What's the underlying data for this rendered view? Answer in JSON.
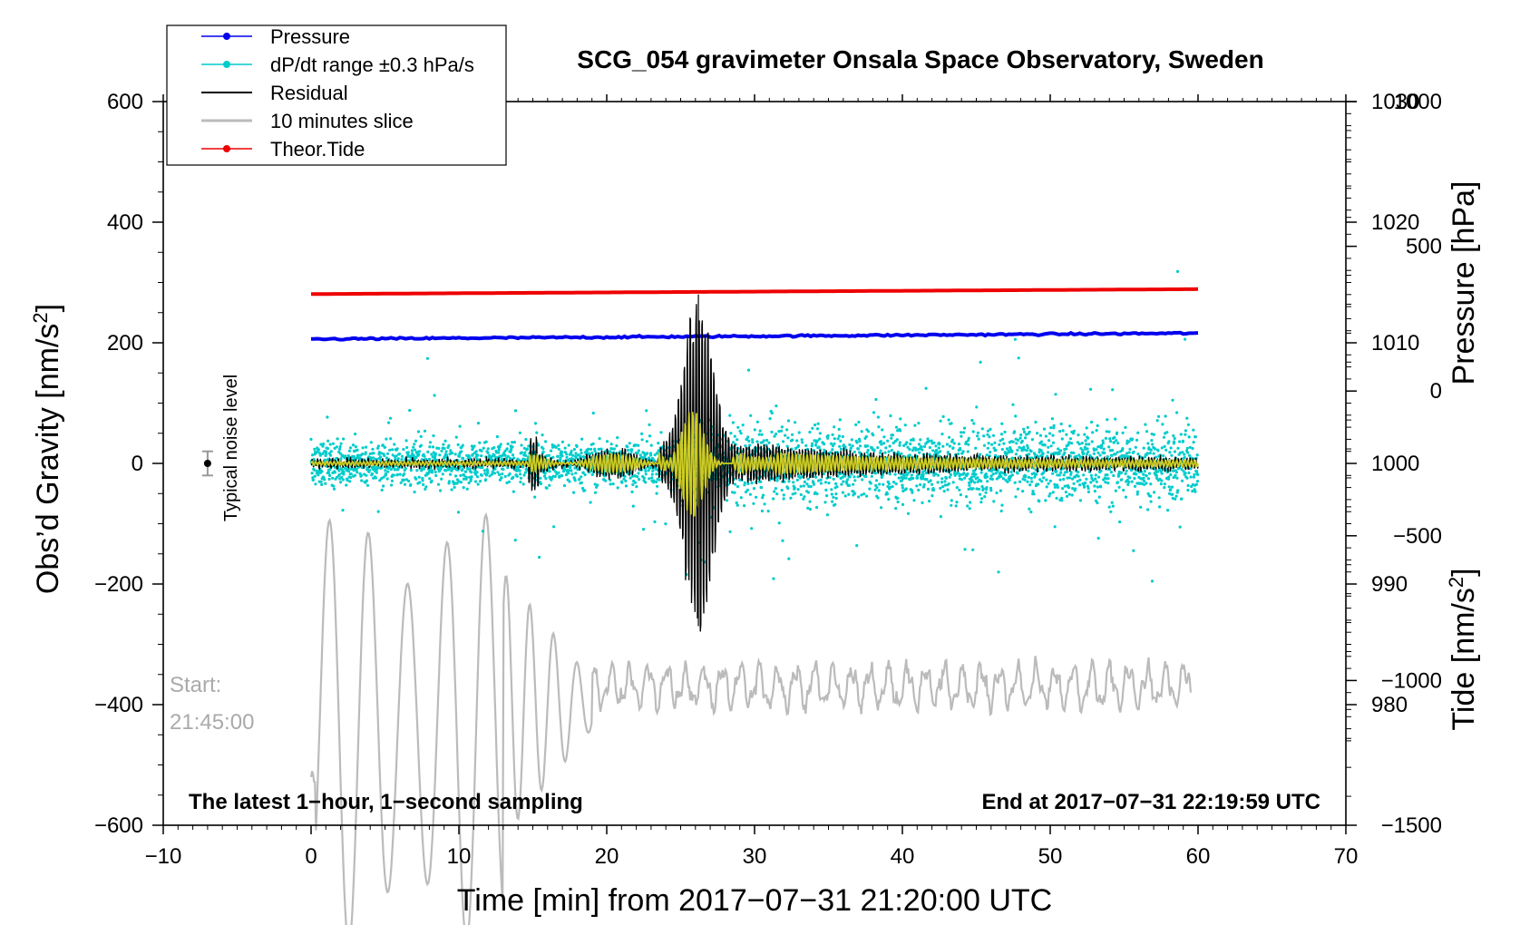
{
  "chart_data": {
    "type": "line",
    "title": "SCG_054 gravimeter Onsala Space Observatory, Sweden",
    "xlabel": "Time [min] from 2017−07−31 21:20:00 UTC",
    "ylabel_left": "Obs’d Gravity [nm/s",
    "ylabel_left_sup": "2",
    "ylabel_left_close": "]",
    "ylabel_right_pressure": "Pressure [hPa]",
    "ylabel_right_tide": "Tide [nm/s",
    "ylabel_right_tide_sup": "2",
    "ylabel_right_tide_close": "]",
    "xlim": [
      -10,
      70
    ],
    "ylim_left": [
      -600,
      600
    ],
    "x_ticks": [
      -10,
      0,
      10,
      20,
      30,
      40,
      50,
      60,
      70
    ],
    "x_tick_labels": [
      "−10",
      "0",
      "10",
      "20",
      "30",
      "40",
      "50",
      "60",
      "70"
    ],
    "y_left_ticks": [
      -600,
      -400,
      -200,
      0,
      200,
      400,
      600
    ],
    "y_left_tick_labels": [
      "−600",
      "−400",
      "−200",
      "0",
      "200",
      "400",
      "600"
    ],
    "pressure_axis": {
      "range": [
        970,
        1030
      ],
      "ticks": [
        980,
        990,
        1000,
        1010,
        1020,
        1030
      ],
      "tick_labels": [
        "980",
        "990",
        "1000",
        "1010",
        "1020",
        "1030"
      ]
    },
    "tide_axis": {
      "range": [
        -1500,
        1000
      ],
      "ticks": [
        -1500,
        -1000,
        -500,
        0,
        500,
        1000
      ],
      "tick_labels": [
        "−1500",
        "−1000",
        "−500",
        "0",
        "500",
        "1000"
      ]
    },
    "series": [
      {
        "name": "Pressure",
        "color": "#0000ee",
        "axis": "pressure",
        "x": [
          0,
          60
        ],
        "values": [
          1010.3,
          1010.8
        ]
      },
      {
        "name": "dP/dt range ±0.3 hPa/s",
        "color": "#00cccc",
        "axis": "pressure",
        "center_hPa": 1000,
        "x": [
          0,
          60
        ]
      },
      {
        "name": "Residual",
        "color": "#000000",
        "axis": "gravity",
        "x": [
          0,
          60
        ],
        "peak_min": 26.2,
        "peak_max": 280,
        "peak_minimum": -270
      },
      {
        "name": "10 minutes slice",
        "color": "#bbbbbb",
        "axis": "gravity",
        "x_range": [
          0,
          59.5
        ],
        "first_value": -520,
        "last_value": -380
      },
      {
        "name": "Theor.Tide",
        "color": "#ee0000",
        "axis": "tide",
        "x": [
          0,
          60
        ],
        "values": [
          335,
          352
        ]
      }
    ],
    "filtered_signal_color": "#cccc22",
    "noise_marker": {
      "x": -7,
      "y": 0,
      "error": 20,
      "label": "Typical noise level"
    },
    "legend_location": "top-left"
  },
  "annotations": {
    "start_label": "Start:",
    "start_time": "21:45:00",
    "bottom_left": "The latest 1−hour, 1−second sampling",
    "bottom_right": "End at 2017−07−31 22:19:59 UTC"
  }
}
